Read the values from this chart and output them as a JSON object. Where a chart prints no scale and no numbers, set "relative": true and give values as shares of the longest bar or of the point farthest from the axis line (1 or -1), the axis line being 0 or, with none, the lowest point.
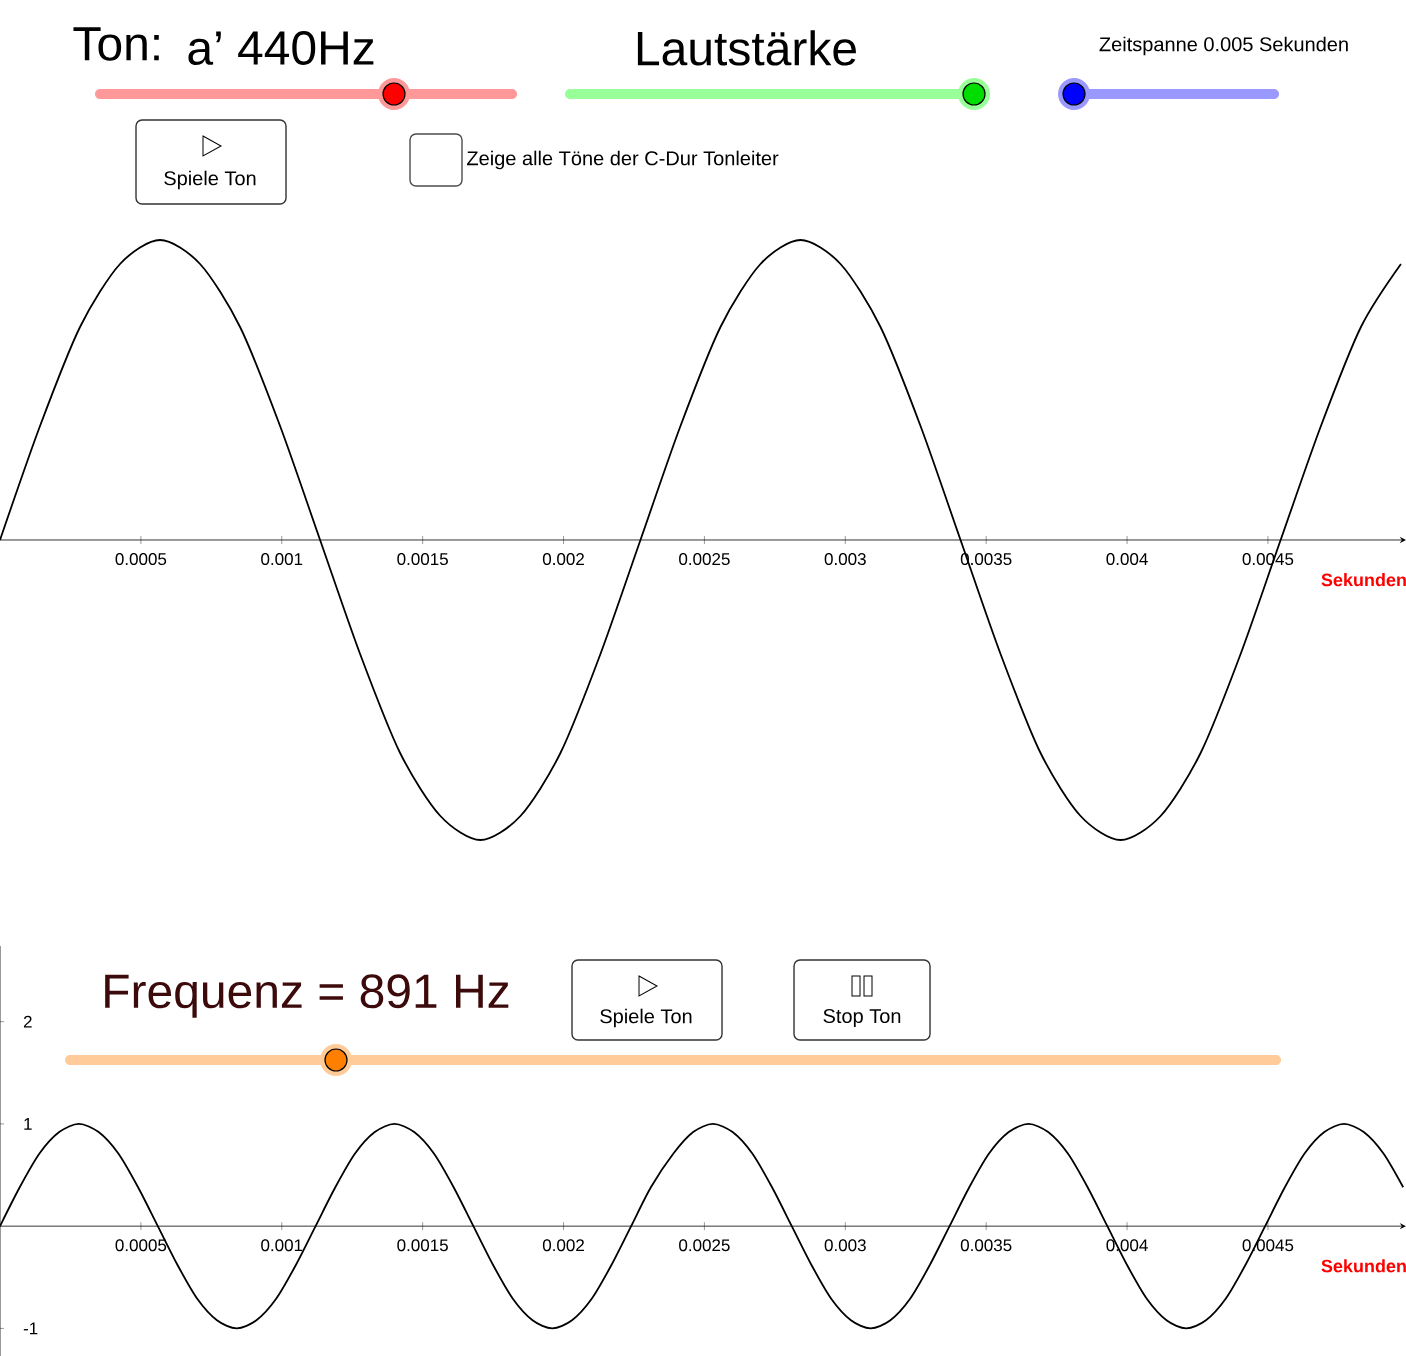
{
  "chart_data": [
    {
      "type": "line",
      "relative": true,
      "color": "#000000",
      "x": [
        0,
        0.000142,
        0.000284,
        0.000426,
        0.000568,
        0.00071,
        0.000852,
        0.000994,
        0.001136,
        0.001278,
        0.00142,
        0.001563,
        0.001705,
        0.001847,
        0.001989,
        0.002131,
        0.002273,
        0.002415,
        0.002557,
        0.002699,
        0.002841,
        0.002983,
        0.003125,
        0.003267,
        0.003409,
        0.003551,
        0.003693,
        0.003835,
        0.003977,
        0.004119,
        0.004261,
        0.004403,
        0.004545,
        0.004688,
        0.00483,
        0.004972
      ],
      "values": [
        0,
        0.38,
        0.71,
        0.92,
        1,
        0.92,
        0.71,
        0.38,
        0,
        -0.38,
        -0.71,
        -0.92,
        -1,
        -0.92,
        -0.71,
        -0.38,
        0,
        0.38,
        0.71,
        0.92,
        1,
        0.92,
        0.71,
        0.38,
        0,
        -0.38,
        -0.71,
        -0.92,
        -1,
        -0.92,
        -0.71,
        -0.38,
        0,
        0.38,
        0.71,
        0.92
      ],
      "xlim": [
        0,
        0.00499
      ],
      "xticks": [
        0.0005,
        0.001,
        0.0015,
        0.002,
        0.0025,
        0.003,
        0.0035,
        0.004,
        0.0045
      ],
      "xlabel": "Sekunden",
      "annotations": [
        "Ton:",
        "a’ 440Hz",
        "Lautstärke",
        "Zeitspanne 0.005 Sekunden",
        "Spiele Ton",
        "Zeige alle Töne der C-Dur Tonleiter"
      ]
    },
    {
      "type": "line",
      "color": "#000000",
      "x": [
        0,
        7e-05,
        0.00014,
        0.00021,
        0.00028,
        0.00035,
        0.00042,
        0.00049,
        0.00056,
        0.00063,
        0.0007,
        0.00077,
        0.00084,
        0.00091,
        0.00098,
        0.00105,
        0.00112,
        0.00119,
        0.00126,
        0.00133,
        0.0014,
        0.00147,
        0.00154,
        0.00161,
        0.00168,
        0.00175,
        0.00182,
        0.00189,
        0.00196,
        0.00203,
        0.0021,
        0.00217,
        0.00224,
        0.00231,
        0.00239,
        0.00246,
        0.00253,
        0.0026,
        0.00267,
        0.00274,
        0.00281,
        0.00288,
        0.00295,
        0.00302,
        0.00309,
        0.00316,
        0.00323,
        0.0033,
        0.00337,
        0.00344,
        0.00351,
        0.00358,
        0.00365,
        0.00372,
        0.00379,
        0.00386,
        0.00393,
        0.004,
        0.00407,
        0.00414,
        0.00421,
        0.00428,
        0.00435,
        0.00442,
        0.00449,
        0.00456,
        0.00463,
        0.0047,
        0.00477,
        0.00484,
        0.00491,
        0.00498
      ],
      "values": [
        0,
        0.38,
        0.71,
        0.92,
        1,
        0.92,
        0.71,
        0.38,
        0,
        -0.38,
        -0.71,
        -0.92,
        -1,
        -0.92,
        -0.71,
        -0.38,
        0,
        0.38,
        0.71,
        0.92,
        1,
        0.92,
        0.71,
        0.38,
        0,
        -0.38,
        -0.71,
        -0.92,
        -1,
        -0.92,
        -0.71,
        -0.38,
        0,
        0.38,
        0.71,
        0.92,
        1,
        0.92,
        0.71,
        0.38,
        0,
        -0.38,
        -0.71,
        -0.92,
        -1,
        -0.92,
        -0.71,
        -0.38,
        0,
        0.38,
        0.71,
        0.92,
        1,
        0.92,
        0.71,
        0.38,
        0,
        -0.38,
        -0.71,
        -0.92,
        -1,
        -0.92,
        -0.71,
        -0.38,
        0,
        0.38,
        0.71,
        0.92,
        1,
        0.92,
        0.71,
        0.38
      ],
      "xlim": [
        0,
        0.00499
      ],
      "xticks": [
        0.0005,
        0.001,
        0.0015,
        0.002,
        0.0025,
        0.003,
        0.0035,
        0.004,
        0.0045
      ],
      "ylim": [
        -1.27,
        2.74
      ],
      "yticks": [
        -1,
        1,
        2
      ],
      "xlabel": "Sekunden",
      "annotations": [
        "Frequenz = 891 Hz",
        "Spiele Ton",
        "Stop Ton"
      ]
    }
  ]
}
